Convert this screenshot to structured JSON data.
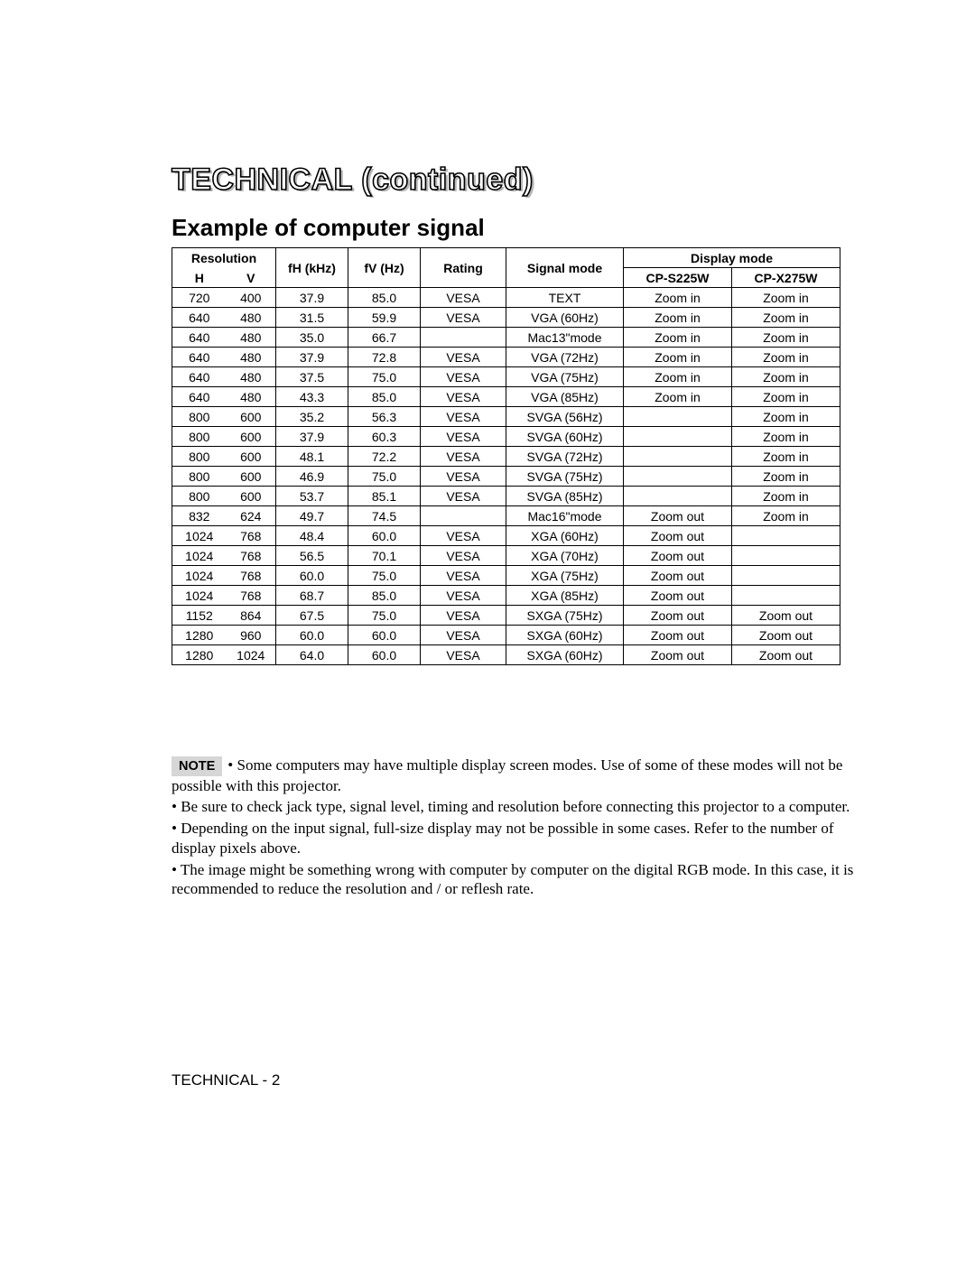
{
  "title_main": "TECHNICAL (continued)",
  "subheading": "Example of computer signal",
  "table": {
    "head": {
      "resolution": "Resolution",
      "res_h": "H",
      "res_v": "V",
      "fh": "fH (kHz)",
      "fv": "fV (Hz)",
      "rating": "Rating",
      "signal_mode": "Signal mode",
      "display_mode": "Display mode",
      "model1": "CP-S225W",
      "model2": "CP-X275W"
    },
    "rows": [
      {
        "h": "720",
        "v": "400",
        "fh": "37.9",
        "fv": "85.0",
        "rating": "VESA",
        "sig": "TEXT",
        "m1": "Zoom in",
        "m2": "Zoom in"
      },
      {
        "h": "640",
        "v": "480",
        "fh": "31.5",
        "fv": "59.9",
        "rating": "VESA",
        "sig": "VGA (60Hz)",
        "m1": "Zoom in",
        "m2": "Zoom in"
      },
      {
        "h": "640",
        "v": "480",
        "fh": "35.0",
        "fv": "66.7",
        "rating": "",
        "sig": "Mac13\"mode",
        "m1": "Zoom in",
        "m2": "Zoom in"
      },
      {
        "h": "640",
        "v": "480",
        "fh": "37.9",
        "fv": "72.8",
        "rating": "VESA",
        "sig": "VGA (72Hz)",
        "m1": "Zoom in",
        "m2": "Zoom in"
      },
      {
        "h": "640",
        "v": "480",
        "fh": "37.5",
        "fv": "75.0",
        "rating": "VESA",
        "sig": "VGA (75Hz)",
        "m1": "Zoom in",
        "m2": "Zoom in"
      },
      {
        "h": "640",
        "v": "480",
        "fh": "43.3",
        "fv": "85.0",
        "rating": "VESA",
        "sig": "VGA (85Hz)",
        "m1": "Zoom in",
        "m2": "Zoom in"
      },
      {
        "h": "800",
        "v": "600",
        "fh": "35.2",
        "fv": "56.3",
        "rating": "VESA",
        "sig": "SVGA (56Hz)",
        "m1": "",
        "m2": "Zoom in"
      },
      {
        "h": "800",
        "v": "600",
        "fh": "37.9",
        "fv": "60.3",
        "rating": "VESA",
        "sig": "SVGA (60Hz)",
        "m1": "",
        "m2": "Zoom in"
      },
      {
        "h": "800",
        "v": "600",
        "fh": "48.1",
        "fv": "72.2",
        "rating": "VESA",
        "sig": "SVGA (72Hz)",
        "m1": "",
        "m2": "Zoom in"
      },
      {
        "h": "800",
        "v": "600",
        "fh": "46.9",
        "fv": "75.0",
        "rating": "VESA",
        "sig": "SVGA (75Hz)",
        "m1": "",
        "m2": "Zoom in"
      },
      {
        "h": "800",
        "v": "600",
        "fh": "53.7",
        "fv": "85.1",
        "rating": "VESA",
        "sig": "SVGA (85Hz)",
        "m1": "",
        "m2": "Zoom in"
      },
      {
        "h": "832",
        "v": "624",
        "fh": "49.7",
        "fv": "74.5",
        "rating": "",
        "sig": "Mac16\"mode",
        "m1": "Zoom out",
        "m2": "Zoom in"
      },
      {
        "h": "1024",
        "v": "768",
        "fh": "48.4",
        "fv": "60.0",
        "rating": "VESA",
        "sig": "XGA (60Hz)",
        "m1": "Zoom out",
        "m2": ""
      },
      {
        "h": "1024",
        "v": "768",
        "fh": "56.5",
        "fv": "70.1",
        "rating": "VESA",
        "sig": "XGA (70Hz)",
        "m1": "Zoom out",
        "m2": ""
      },
      {
        "h": "1024",
        "v": "768",
        "fh": "60.0",
        "fv": "75.0",
        "rating": "VESA",
        "sig": "XGA (75Hz)",
        "m1": "Zoom out",
        "m2": ""
      },
      {
        "h": "1024",
        "v": "768",
        "fh": "68.7",
        "fv": "85.0",
        "rating": "VESA",
        "sig": "XGA (85Hz)",
        "m1": "Zoom out",
        "m2": ""
      },
      {
        "h": "1152",
        "v": "864",
        "fh": "67.5",
        "fv": "75.0",
        "rating": "VESA",
        "sig": "SXGA (75Hz)",
        "m1": "Zoom out",
        "m2": "Zoom out"
      },
      {
        "h": "1280",
        "v": "960",
        "fh": "60.0",
        "fv": "60.0",
        "rating": "VESA",
        "sig": "SXGA (60Hz)",
        "m1": "Zoom out",
        "m2": "Zoom out"
      },
      {
        "h": "1280",
        "v": "1024",
        "fh": "64.0",
        "fv": "60.0",
        "rating": "VESA",
        "sig": "SXGA (60Hz)",
        "m1": "Zoom out",
        "m2": "Zoom out"
      }
    ]
  },
  "note_label": "NOTE",
  "notes": [
    "• Some computers may have multiple display screen modes. Use of some of these modes will not be possible with this projector.",
    "• Be sure to check jack type, signal level, timing and resolution before connecting this projector to a computer.",
    "• Depending on the input signal, full-size display may not be possible in some cases. Refer to the number of display pixels above.",
    "• The image might be something wrong with computer by computer on the digital RGB mode. In this case, it is recommended to reduce the resolution and / or reflesh rate."
  ],
  "footer": "TECHNICAL - 2"
}
